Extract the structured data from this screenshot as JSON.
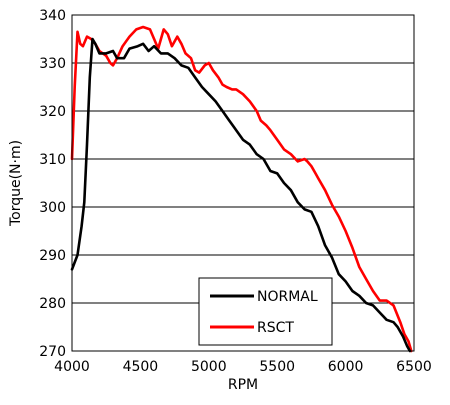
{
  "chart_data": {
    "type": "line",
    "title": "",
    "xlabel": "RPM",
    "ylabel": "Torque(N·m)",
    "xlim": [
      4000,
      6500
    ],
    "ylim": [
      270,
      340
    ],
    "xticks": [
      4000,
      4500,
      5000,
      5500,
      6000,
      6500
    ],
    "yticks": [
      270,
      280,
      290,
      300,
      310,
      320,
      330,
      340
    ],
    "grid": "horizontal",
    "legend_position": "bottom-right",
    "series": [
      {
        "name": "NORMAL",
        "color": "#000000",
        "x": [
          4000,
          4040,
          4070,
          4090,
          4110,
          4130,
          4150,
          4170,
          4200,
          4250,
          4300,
          4330,
          4380,
          4420,
          4480,
          4520,
          4560,
          4600,
          4650,
          4700,
          4750,
          4800,
          4850,
          4900,
          4950,
          5000,
          5050,
          5100,
          5150,
          5200,
          5250,
          5300,
          5350,
          5400,
          5450,
          5500,
          5550,
          5600,
          5650,
          5700,
          5750,
          5800,
          5850,
          5900,
          5950,
          6000,
          6050,
          6100,
          6150,
          6200,
          6250,
          6300,
          6350,
          6380,
          6420,
          6450,
          6470
        ],
        "values": [
          287,
          290,
          296,
          301,
          313,
          327,
          335,
          334,
          332,
          332,
          332.5,
          331,
          331,
          333,
          333.5,
          334,
          332.5,
          333.5,
          332,
          332,
          331,
          329.5,
          329,
          327,
          325,
          323.5,
          322,
          320,
          318,
          316,
          314,
          313,
          311,
          310,
          307.5,
          307,
          305,
          303.5,
          301,
          299.5,
          299,
          296,
          292,
          289.5,
          286,
          284.5,
          282.5,
          281.5,
          280,
          279.5,
          278,
          276.5,
          276,
          275,
          273,
          271,
          270
        ]
      },
      {
        "name": "RSCT",
        "color": "#ff0000",
        "x": [
          4000,
          4020,
          4040,
          4060,
          4080,
          4110,
          4140,
          4170,
          4200,
          4250,
          4280,
          4300,
          4330,
          4370,
          4420,
          4470,
          4520,
          4570,
          4600,
          4630,
          4670,
          4700,
          4730,
          4770,
          4800,
          4830,
          4870,
          4900,
          4930,
          4970,
          5000,
          5030,
          5070,
          5100,
          5130,
          5170,
          5200,
          5250,
          5300,
          5350,
          5380,
          5420,
          5450,
          5500,
          5550,
          5600,
          5650,
          5700,
          5720,
          5750,
          5780,
          5800,
          5850,
          5900,
          5950,
          6000,
          6050,
          6100,
          6150,
          6200,
          6250,
          6300,
          6350,
          6400,
          6430,
          6460,
          6480
        ],
        "values": [
          310,
          325,
          336.5,
          334,
          333.5,
          335.5,
          335,
          334,
          332.5,
          331.5,
          330,
          329.5,
          331,
          333.5,
          335.5,
          337,
          337.5,
          337,
          335,
          333,
          337,
          336,
          333.5,
          335.5,
          334,
          332,
          331,
          328.5,
          328,
          329.5,
          330,
          328.5,
          327,
          325.5,
          325,
          324.5,
          324.5,
          323.5,
          322,
          320,
          318,
          317,
          316,
          314,
          312,
          311,
          309.5,
          310,
          309.5,
          308.5,
          307,
          306,
          303.5,
          300.5,
          298,
          295,
          291.5,
          287.5,
          285,
          282.5,
          280.5,
          280.5,
          279.5,
          276,
          273.5,
          272,
          270
        ]
      }
    ]
  }
}
